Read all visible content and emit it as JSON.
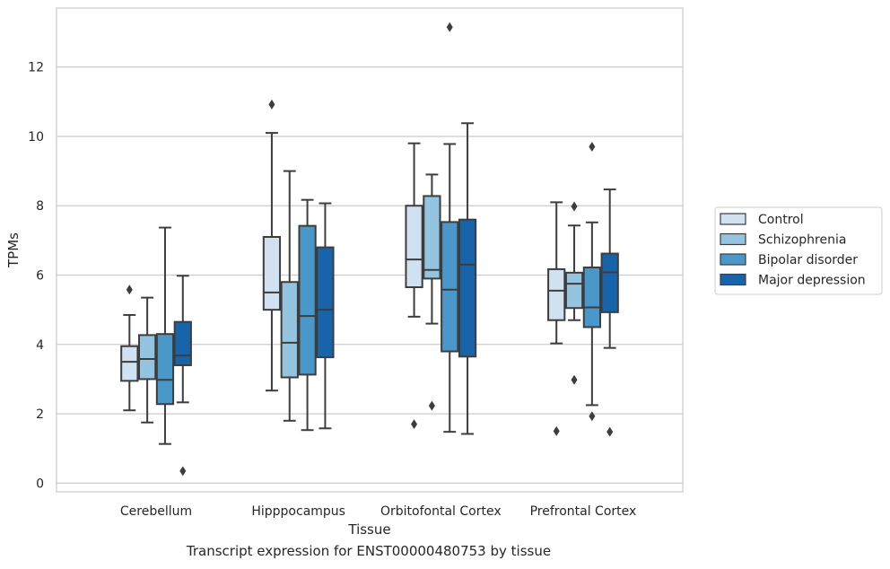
{
  "caption": "Transcript expression for ENST00000480753 by tissue",
  "chart_data": {
    "type": "box",
    "title": "",
    "xlabel": "Tissue",
    "ylabel": "TPMs",
    "ylim": [
      -0.25,
      13.7
    ],
    "yticks": [
      0,
      2,
      4,
      6,
      8,
      10,
      12
    ],
    "grid": true,
    "legend_position": "right",
    "categories": [
      "Cerebellum",
      "Hipppocampus",
      "Orbitofontal Cortex",
      "Prefrontal Cortex"
    ],
    "colors": [
      "#d0e1f2",
      "#94c4df",
      "#4a98c9",
      "#1764ab"
    ],
    "series": [
      {
        "name": "Control",
        "boxes": [
          {
            "whislo": 2.1,
            "q1": 2.95,
            "med": 3.5,
            "q3": 3.95,
            "whishi": 4.85,
            "fliers": [
              5.58
            ]
          },
          {
            "whislo": 2.67,
            "q1": 5.0,
            "med": 5.5,
            "q3": 7.1,
            "whishi": 10.1,
            "fliers": [
              10.92
            ]
          },
          {
            "whislo": 4.8,
            "q1": 5.65,
            "med": 6.45,
            "q3": 8.0,
            "whishi": 9.8,
            "fliers": [
              1.7
            ]
          },
          {
            "whislo": 4.03,
            "q1": 4.7,
            "med": 5.55,
            "q3": 6.17,
            "whishi": 8.1,
            "fliers": [
              1.5
            ]
          }
        ]
      },
      {
        "name": "Schizophrenia",
        "boxes": [
          {
            "whislo": 1.75,
            "q1": 3.0,
            "med": 3.58,
            "q3": 4.27,
            "whishi": 5.35,
            "fliers": []
          },
          {
            "whislo": 1.8,
            "q1": 3.05,
            "med": 4.05,
            "q3": 5.8,
            "whishi": 9.0,
            "fliers": []
          },
          {
            "whislo": 4.6,
            "q1": 5.9,
            "med": 6.15,
            "q3": 8.28,
            "whishi": 8.9,
            "fliers": [
              2.23
            ]
          },
          {
            "whislo": 4.7,
            "q1": 5.05,
            "med": 5.75,
            "q3": 6.07,
            "whishi": 7.43,
            "fliers": [
              2.98,
              7.98
            ]
          }
        ]
      },
      {
        "name": "Bipolar disorder",
        "boxes": [
          {
            "whislo": 1.13,
            "q1": 2.28,
            "med": 2.98,
            "q3": 4.3,
            "whishi": 7.37,
            "fliers": []
          },
          {
            "whislo": 1.53,
            "q1": 3.13,
            "med": 4.82,
            "q3": 7.42,
            "whishi": 8.17,
            "fliers": []
          },
          {
            "whislo": 1.48,
            "q1": 3.8,
            "med": 5.58,
            "q3": 7.53,
            "whishi": 9.78,
            "fliers": [
              13.15
            ]
          },
          {
            "whislo": 2.25,
            "q1": 4.5,
            "med": 5.07,
            "q3": 6.22,
            "whishi": 7.52,
            "fliers": [
              1.93,
              9.7
            ]
          }
        ]
      },
      {
        "name": "Major depression",
        "boxes": [
          {
            "whislo": 2.33,
            "q1": 3.4,
            "med": 3.68,
            "q3": 4.65,
            "whishi": 5.98,
            "fliers": [
              0.35
            ]
          },
          {
            "whislo": 1.58,
            "q1": 3.63,
            "med": 5.0,
            "q3": 6.8,
            "whishi": 8.07,
            "fliers": []
          },
          {
            "whislo": 1.42,
            "q1": 3.65,
            "med": 6.3,
            "q3": 7.6,
            "whishi": 10.38,
            "fliers": []
          },
          {
            "whislo": 3.9,
            "q1": 4.93,
            "med": 6.08,
            "q3": 6.62,
            "whishi": 8.47,
            "fliers": [
              1.48
            ]
          }
        ]
      }
    ]
  }
}
